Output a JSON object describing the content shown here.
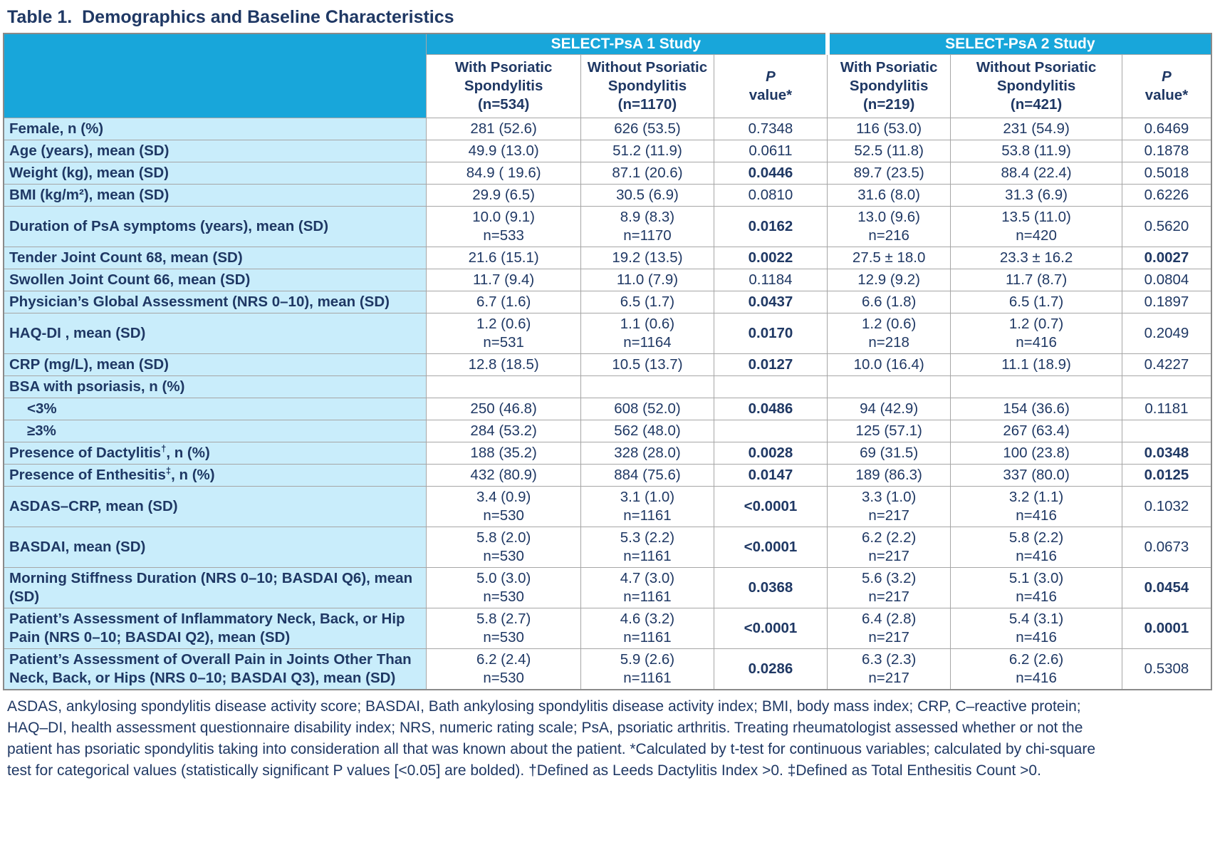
{
  "title": "Table 1.  Demographics and Baseline Characteristics",
  "colors": {
    "accent_cyan": "#18a6da",
    "label_background": "#c9edfb",
    "text_navy": "#1f3864",
    "grid_gray": "#a6a6a6"
  },
  "header": {
    "group1": "SELECT-PsA 1 Study",
    "group2": "SELECT-PsA 2 Study",
    "columns": [
      {
        "lines": [
          "With Psoriatic",
          "Spondylitis",
          "(n=534)"
        ]
      },
      {
        "lines": [
          "Without Psoriatic",
          "Spondylitis",
          "(n=1170)"
        ]
      },
      {
        "lines": [
          "P",
          "value*"
        ],
        "p": true
      },
      {
        "lines": [
          "With Psoriatic",
          "Spondylitis",
          "(n=219)"
        ]
      },
      {
        "lines": [
          "Without Psoriatic",
          "Spondylitis",
          "(n=421)"
        ]
      },
      {
        "lines": [
          "P",
          "value*"
        ],
        "p": true
      }
    ]
  },
  "rows": [
    {
      "label": "Female, n (%)",
      "cells": [
        [
          "281 (52.6)"
        ],
        [
          "626 (53.5)"
        ],
        [
          "0.7348"
        ],
        [
          "116 (53.0)"
        ],
        [
          "231 (54.9)"
        ],
        [
          "0.6469"
        ]
      ],
      "bold": []
    },
    {
      "label": "Age (years), mean (SD)",
      "cells": [
        [
          "49.9 (13.0)"
        ],
        [
          "51.2 (11.9)"
        ],
        [
          "0.0611"
        ],
        [
          "52.5 (11.8)"
        ],
        [
          "53.8 (11.9)"
        ],
        [
          "0.1878"
        ]
      ],
      "bold": []
    },
    {
      "label": "Weight (kg), mean (SD)",
      "cells": [
        [
          "84.9 ( 19.6)"
        ],
        [
          "87.1 (20.6)"
        ],
        [
          "0.0446"
        ],
        [
          "89.7 (23.5)"
        ],
        [
          "88.4 (22.4)"
        ],
        [
          "0.5018"
        ]
      ],
      "bold": [
        2
      ]
    },
    {
      "label": "BMI (kg/m²), mean (SD)",
      "cells": [
        [
          "29.9 (6.5)"
        ],
        [
          "30.5 (6.9)"
        ],
        [
          "0.0810"
        ],
        [
          "31.6 (8.0)"
        ],
        [
          "31.3 (6.9)"
        ],
        [
          "0.6226"
        ]
      ],
      "bold": []
    },
    {
      "label": "Duration of PsA symptoms (years), mean (SD)",
      "cells": [
        [
          "10.0 (9.1)",
          "n=533"
        ],
        [
          "8.9 (8.3)",
          "n=1170"
        ],
        [
          "0.0162"
        ],
        [
          "13.0 (9.6)",
          "n=216"
        ],
        [
          "13.5 (11.0)",
          "n=420"
        ],
        [
          "0.5620"
        ]
      ],
      "bold": [
        2
      ]
    },
    {
      "label": "Tender Joint Count 68, mean (SD)",
      "cells": [
        [
          "21.6 (15.1)"
        ],
        [
          "19.2 (13.5)"
        ],
        [
          "0.0022"
        ],
        [
          "27.5 ± 18.0"
        ],
        [
          "23.3 ± 16.2"
        ],
        [
          "0.0027"
        ]
      ],
      "bold": [
        2,
        5
      ]
    },
    {
      "label": "Swollen Joint Count 66, mean (SD)",
      "cells": [
        [
          "11.7 (9.4)"
        ],
        [
          "11.0 (7.9)"
        ],
        [
          "0.1184"
        ],
        [
          "12.9 (9.2)"
        ],
        [
          "11.7 (8.7)"
        ],
        [
          "0.0804"
        ]
      ],
      "bold": []
    },
    {
      "label": "Physician’s Global Assessment (NRS 0–10), mean (SD)",
      "cells": [
        [
          "6.7 (1.6)"
        ],
        [
          "6.5 (1.7)"
        ],
        [
          "0.0437"
        ],
        [
          "6.6 (1.8)"
        ],
        [
          "6.5 (1.7)"
        ],
        [
          "0.1897"
        ]
      ],
      "bold": [
        2
      ]
    },
    {
      "label": "HAQ-DI , mean (SD)",
      "cells": [
        [
          "1.2 (0.6)",
          "n=531"
        ],
        [
          "1.1 (0.6)",
          "n=1164"
        ],
        [
          "0.0170"
        ],
        [
          "1.2 (0.6)",
          "n=218"
        ],
        [
          "1.2 (0.7)",
          "n=416"
        ],
        [
          "0.2049"
        ]
      ],
      "bold": [
        2
      ]
    },
    {
      "label": "CRP (mg/L), mean (SD)",
      "cells": [
        [
          "12.8 (18.5)"
        ],
        [
          "10.5 (13.7)"
        ],
        [
          "0.0127"
        ],
        [
          "10.0 (16.4)"
        ],
        [
          "11.1 (18.9)"
        ],
        [
          "0.4227"
        ]
      ],
      "bold": [
        2
      ]
    },
    {
      "label": "BSA with psoriasis, n (%)",
      "cells": [
        [],
        [],
        [],
        [],
        [],
        []
      ],
      "bold": []
    },
    {
      "label": "<3%",
      "indent": true,
      "cells": [
        [
          "250 (46.8)"
        ],
        [
          "608 (52.0)"
        ],
        [
          "0.0486"
        ],
        [
          "94 (42.9)"
        ],
        [
          "154 (36.6)"
        ],
        [
          "0.1181"
        ]
      ],
      "bold": [
        2
      ]
    },
    {
      "label": "≥3%",
      "indent": true,
      "cells": [
        [
          "284 (53.2)"
        ],
        [
          "562 (48.0)"
        ],
        [],
        [
          "125 (57.1)"
        ],
        [
          "267 (63.4)"
        ],
        []
      ],
      "bold": []
    },
    {
      "label": "Presence of Dactylitis†, n (%)",
      "cells": [
        [
          "188 (35.2)"
        ],
        [
          "328 (28.0)"
        ],
        [
          "0.0028"
        ],
        [
          "69 (31.5)"
        ],
        [
          "100 (23.8)"
        ],
        [
          "0.0348"
        ]
      ],
      "bold": [
        2,
        5
      ]
    },
    {
      "label": "Presence of Enthesitis‡, n (%)",
      "cells": [
        [
          "432 (80.9)"
        ],
        [
          "884 (75.6)"
        ],
        [
          "0.0147"
        ],
        [
          "189 (86.3)"
        ],
        [
          "337 (80.0)"
        ],
        [
          "0.0125"
        ]
      ],
      "bold": [
        2,
        5
      ]
    },
    {
      "label": "ASDAS–CRP, mean (SD)",
      "cells": [
        [
          "3.4 (0.9)",
          "n=530"
        ],
        [
          "3.1 (1.0)",
          "n=1161"
        ],
        [
          "<0.0001"
        ],
        [
          "3.3 (1.0)",
          "n=217"
        ],
        [
          "3.2 (1.1)",
          "n=416"
        ],
        [
          "0.1032"
        ]
      ],
      "bold": [
        2
      ]
    },
    {
      "label": "BASDAI, mean (SD)",
      "cells": [
        [
          "5.8 (2.0)",
          "n=530"
        ],
        [
          "5.3 (2.2)",
          "n=1161"
        ],
        [
          "<0.0001"
        ],
        [
          "6.2 (2.2)",
          "n=217"
        ],
        [
          "5.8 (2.2)",
          "n=416"
        ],
        [
          "0.0673"
        ]
      ],
      "bold": [
        2
      ]
    },
    {
      "label": "Morning Stiffness Duration (NRS 0–10; BASDAI Q6), mean (SD)",
      "cells": [
        [
          "5.0 (3.0)",
          "n=530"
        ],
        [
          "4.7 (3.0)",
          "n=1161"
        ],
        [
          "0.0368"
        ],
        [
          "5.6 (3.2)",
          "n=217"
        ],
        [
          "5.1 (3.0)",
          "n=416"
        ],
        [
          "0.0454"
        ]
      ],
      "bold": [
        2,
        5
      ]
    },
    {
      "label": "Patient’s Assessment of Inflammatory Neck, Back, or Hip Pain (NRS 0–10; BASDAI Q2), mean (SD)",
      "cells": [
        [
          "5.8 (2.7)",
          "n=530"
        ],
        [
          "4.6 (3.2)",
          "n=1161"
        ],
        [
          "<0.0001"
        ],
        [
          "6.4 (2.8)",
          "n=217"
        ],
        [
          "5.4 (3.1)",
          "n=416"
        ],
        [
          "0.0001"
        ]
      ],
      "bold": [
        2,
        5
      ]
    },
    {
      "label": "Patient’s Assessment of Overall Pain in Joints Other Than Neck, Back, or Hips (NRS 0–10; BASDAI Q3), mean (SD)",
      "cells": [
        [
          "6.2 (2.4)",
          "n=530"
        ],
        [
          "5.9 (2.6)",
          "n=1161"
        ],
        [
          "0.0286"
        ],
        [
          "6.3 (2.3)",
          "n=217"
        ],
        [
          "6.2 (2.6)",
          "n=416"
        ],
        [
          "0.5308"
        ]
      ],
      "bold": [
        2
      ]
    }
  ],
  "footnote": "ASDAS, ankylosing spondylitis disease activity score; BASDAI, Bath ankylosing spondylitis disease activity index; BMI, body mass index; CRP, C–reactive protein; HAQ–DI, health assessment questionnaire disability index; NRS, numeric rating scale; PsA, psoriatic arthritis. Treating rheumatologist assessed whether or not the patient has psoriatic spondylitis taking into consideration all that was known about the patient. *Calculated by t-test for continuous variables; calculated by chi-square test for categorical values (statistically significant P values [<0.05] are bolded). †Defined as Leeds Dactylitis Index >0. ‡Defined as Total Enthesitis Count >0."
}
